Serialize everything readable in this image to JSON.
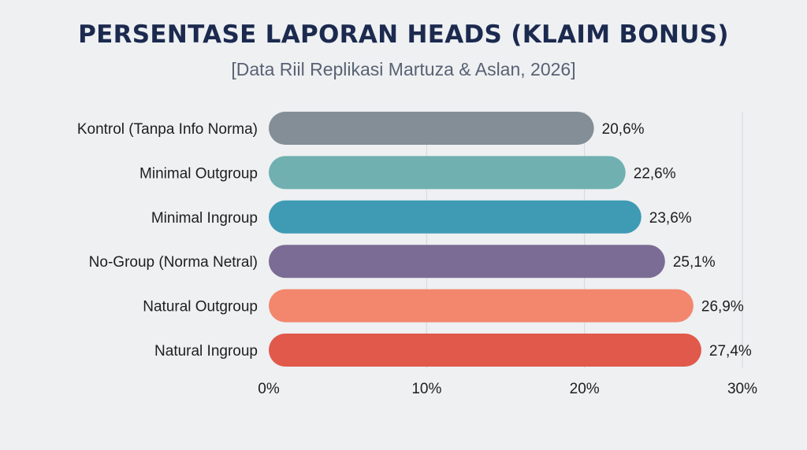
{
  "chart_data": {
    "type": "bar",
    "orientation": "horizontal",
    "title": "PERSENTASE LAPORAN HEADS (KLAIM BONUS)",
    "subtitle": "[Data Riil Replikasi Martuza & Aslan, 2026]",
    "categories": [
      "Kontrol (Tanpa Info Norma)",
      "Minimal Outgroup",
      "Minimal Ingroup",
      "No-Group (Norma Netral)",
      "Natural Outgroup",
      "Natural Ingroup"
    ],
    "values": [
      20.6,
      22.6,
      23.6,
      25.1,
      26.9,
      27.4
    ],
    "value_labels": [
      "20,6%",
      "22,6%",
      "23,6%",
      "25,1%",
      "26,9%",
      "27,4%"
    ],
    "bar_colors": [
      "#848e96",
      "#70b0b0",
      "#3f9bb4",
      "#7a6c94",
      "#f2876e",
      "#e0594b"
    ],
    "xlim": [
      0,
      30
    ],
    "xticks": [
      0,
      10,
      20,
      30
    ],
    "xtick_labels": [
      "0%",
      "10%",
      "20%",
      "30%"
    ],
    "grid": true,
    "xlabel": "",
    "ylabel": ""
  }
}
